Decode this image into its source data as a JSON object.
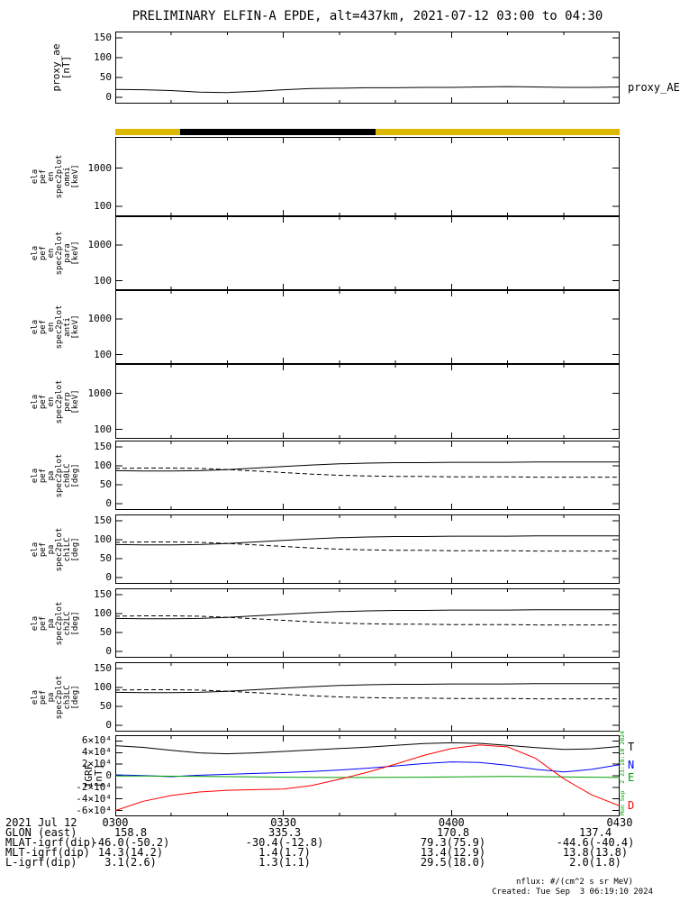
{
  "title": "PRELIMINARY ELFIN-A EPDE, alt=437km, 2021-07-12 03:00 to 04:30",
  "colors": {
    "axis": "#000000",
    "bar_yellow": "#ddb800",
    "bar_black": "#000000",
    "igrf_T": "#000000",
    "igrf_N": "#0000ff",
    "igrf_E": "#00a000",
    "igrf_D": "#ff0000",
    "timestamp_green": "#00a000"
  },
  "time_axis": {
    "date_label": "2021 Jul 12",
    "ticks": [
      "0300",
      "0330",
      "0400",
      "0430"
    ],
    "minutes": [
      0,
      30,
      60,
      90
    ],
    "minor_step_min": 10,
    "start": "2021-07-12 03:00",
    "end": "2021-07-12 04:30"
  },
  "x_minutes": [
    0,
    5,
    10,
    15,
    20,
    25,
    30,
    35,
    40,
    45,
    50,
    55,
    60,
    65,
    70,
    75,
    80,
    85,
    90
  ],
  "status_bar": {
    "segments": [
      {
        "color": "#ddb800",
        "from": 0.0,
        "to": 0.129
      },
      {
        "color": "#000000",
        "from": 0.129,
        "to": 0.516
      },
      {
        "color": "#ddb800",
        "from": 0.516,
        "to": 1.0
      }
    ]
  },
  "chart_data": [
    {
      "id": "proxy_ae",
      "type": "line",
      "ylabel_lines": [
        "proxy_ae",
        "[nT]"
      ],
      "right_label": "proxy_AE",
      "yticks": [
        0,
        50,
        100,
        150
      ],
      "ytick_labels": [
        "0",
        "50",
        "100",
        "150"
      ],
      "ylim": [
        -16,
        166
      ],
      "series": [
        {
          "name": "proxy_AE",
          "color": "#000000",
          "style": "solid",
          "values": [
            20,
            19,
            17,
            13,
            12,
            15,
            19,
            22,
            23,
            24,
            24,
            25,
            25,
            26,
            27,
            26,
            25,
            25,
            26
          ]
        }
      ]
    },
    {
      "id": "en_omni",
      "type": "spectrogram",
      "yscale": "log",
      "ylabel_lines": [
        "ela",
        "pef",
        "en",
        "spec2plot",
        "omni",
        "[keV]"
      ],
      "yticks": [
        100,
        1000
      ],
      "ytick_labels": [
        "100",
        "1000"
      ],
      "ylim": [
        55,
        6500
      ],
      "series": [],
      "note": "blank - no flux data rendered"
    },
    {
      "id": "en_para",
      "type": "spectrogram",
      "yscale": "log",
      "ylabel_lines": [
        "ela",
        "pef",
        "en",
        "spec2plot",
        "para",
        "[keV]"
      ],
      "yticks": [
        100,
        1000
      ],
      "ytick_labels": [
        "100",
        "1000"
      ],
      "ylim": [
        55,
        6500
      ],
      "series": [],
      "note": "blank - no flux data rendered"
    },
    {
      "id": "en_anti",
      "type": "spectrogram",
      "yscale": "log",
      "ylabel_lines": [
        "ela",
        "pef",
        "en",
        "spec2plot",
        "anti",
        "[keV]"
      ],
      "yticks": [
        100,
        1000
      ],
      "ytick_labels": [
        "100",
        "1000"
      ],
      "ylim": [
        55,
        6500
      ],
      "series": [],
      "note": "blank - no flux data rendered"
    },
    {
      "id": "en_perp",
      "type": "spectrogram",
      "yscale": "log",
      "ylabel_lines": [
        "ela",
        "pef",
        "en",
        "spec2plot",
        "perp",
        "[keV]"
      ],
      "yticks": [
        100,
        1000
      ],
      "ytick_labels": [
        "100",
        "1000"
      ],
      "ylim": [
        55,
        6500
      ],
      "series": [],
      "note": "blank - no flux data rendered"
    },
    {
      "id": "pa_ch0",
      "type": "line",
      "ylabel_lines": [
        "ela",
        "pef",
        "pa",
        "spec2plot",
        "ch0LC",
        "[deg]"
      ],
      "yticks": [
        0,
        50,
        100,
        150
      ],
      "ytick_labels": [
        "0",
        "50",
        "100",
        "150"
      ],
      "ylim": [
        -16,
        166
      ],
      "series": [
        {
          "name": "loss cone",
          "color": "#000000",
          "style": "solid",
          "values": [
            87,
            86,
            86,
            87,
            90,
            94,
            98,
            102,
            105,
            107,
            108,
            108,
            109,
            109,
            109,
            110,
            110,
            110,
            110
          ]
        },
        {
          "name": "anti loss cone",
          "color": "#000000",
          "style": "dashed",
          "values": [
            93,
            94,
            94,
            93,
            90,
            86,
            82,
            78,
            75,
            73,
            72,
            72,
            71,
            71,
            71,
            70,
            70,
            70,
            70
          ]
        }
      ]
    },
    {
      "id": "pa_ch1",
      "type": "line",
      "ylabel_lines": [
        "ela",
        "pef",
        "pa",
        "spec2plot",
        "ch1LC",
        "[deg]"
      ],
      "yticks": [
        0,
        50,
        100,
        150
      ],
      "ytick_labels": [
        "0",
        "50",
        "100",
        "150"
      ],
      "ylim": [
        -16,
        166
      ],
      "series": [
        {
          "name": "loss cone",
          "color": "#000000",
          "style": "solid",
          "values": [
            87,
            86,
            86,
            87,
            90,
            94,
            98,
            102,
            105,
            107,
            108,
            108,
            109,
            109,
            109,
            110,
            110,
            110,
            110
          ]
        },
        {
          "name": "anti loss cone",
          "color": "#000000",
          "style": "dashed",
          "values": [
            93,
            94,
            94,
            93,
            90,
            86,
            82,
            78,
            75,
            73,
            72,
            72,
            71,
            71,
            71,
            70,
            70,
            70,
            70
          ]
        }
      ]
    },
    {
      "id": "pa_ch2",
      "type": "line",
      "ylabel_lines": [
        "ela",
        "pef",
        "pa",
        "spec2plot",
        "ch2LC",
        "[deg]"
      ],
      "yticks": [
        0,
        50,
        100,
        150
      ],
      "ytick_labels": [
        "0",
        "50",
        "100",
        "150"
      ],
      "ylim": [
        -16,
        166
      ],
      "series": [
        {
          "name": "loss cone",
          "color": "#000000",
          "style": "solid",
          "values": [
            87,
            86,
            86,
            87,
            90,
            94,
            98,
            102,
            105,
            107,
            108,
            108,
            109,
            109,
            109,
            110,
            110,
            110,
            110
          ]
        },
        {
          "name": "anti loss cone",
          "color": "#000000",
          "style": "dashed",
          "values": [
            93,
            94,
            94,
            93,
            90,
            86,
            82,
            78,
            75,
            73,
            72,
            72,
            71,
            71,
            71,
            70,
            70,
            70,
            70
          ]
        }
      ]
    },
    {
      "id": "pa_ch3",
      "type": "line",
      "ylabel_lines": [
        "ela",
        "pef",
        "pa",
        "spec2plot",
        "ch3LC",
        "[deg]"
      ],
      "yticks": [
        0,
        50,
        100,
        150
      ],
      "ytick_labels": [
        "0",
        "50",
        "100",
        "150"
      ],
      "ylim": [
        -16,
        166
      ],
      "series": [
        {
          "name": "loss cone",
          "color": "#000000",
          "style": "solid",
          "values": [
            87,
            86,
            86,
            87,
            90,
            94,
            98,
            102,
            105,
            107,
            108,
            108,
            109,
            109,
            109,
            110,
            110,
            110,
            110
          ]
        },
        {
          "name": "anti loss cone",
          "color": "#000000",
          "style": "dashed",
          "values": [
            93,
            94,
            94,
            93,
            90,
            86,
            82,
            78,
            75,
            73,
            72,
            72,
            71,
            71,
            71,
            70,
            70,
            70,
            70
          ]
        }
      ]
    },
    {
      "id": "igrf",
      "type": "line",
      "ylabel_lines": [
        "IGRF",
        "[nT]"
      ],
      "yticks": [
        -60000,
        -40000,
        -20000,
        0,
        20000,
        40000,
        60000
      ],
      "ytick_labels": [
        "-6×10⁴",
        "-4×10⁴",
        "-2×10⁴",
        "0",
        "2×10⁴",
        "4×10⁴",
        "6×10⁴"
      ],
      "ylim": [
        -70000,
        70000
      ],
      "series": [
        {
          "name": "T",
          "label": "T",
          "color": "#000000",
          "style": "solid",
          "values": [
            52000,
            49000,
            44000,
            39500,
            38000,
            39500,
            42000,
            44500,
            47000,
            49500,
            52500,
            55500,
            57000,
            56000,
            52500,
            48500,
            45500,
            46500,
            50500
          ]
        },
        {
          "name": "N",
          "label": "N",
          "color": "#0000ff",
          "style": "solid",
          "values": [
            1500,
            500,
            -1500,
            1000,
            2500,
            4000,
            5500,
            7500,
            10000,
            13000,
            17000,
            21000,
            24000,
            23000,
            18000,
            11000,
            6500,
            11000,
            19000
          ]
        },
        {
          "name": "E",
          "label": "E",
          "color": "#00a000",
          "style": "solid",
          "values": [
            -300,
            -500,
            -800,
            -1000,
            -1500,
            -2000,
            -2500,
            -2800,
            -3000,
            -3000,
            -2800,
            -2500,
            -2000,
            -1500,
            -1200,
            -1500,
            -2000,
            -2500,
            -3000
          ]
        },
        {
          "name": "D",
          "label": "D",
          "color": "#ff0000",
          "style": "solid",
          "values": [
            -60000,
            -44000,
            -34000,
            -28000,
            -25000,
            -24000,
            -23000,
            -17000,
            -6000,
            6000,
            20000,
            35000,
            47000,
            53000,
            50000,
            30000,
            -5000,
            -33000,
            -52000
          ]
        }
      ]
    }
  ],
  "footer": {
    "var_labels": [
      {
        "label": "GLON (east)",
        "values": [
          "158.8",
          "335.3",
          "170.8",
          "137.4"
        ]
      },
      {
        "label": "MLAT-igrf(dip)",
        "values": [
          "-46.0(-50.2)",
          "-30.4(-12.8)",
          "79.3(75.9)",
          "-44.6(-40.4)"
        ]
      },
      {
        "label": "MLT-igrf(dip)",
        "values": [
          "14.3(14.2)",
          "1.4(1.7)",
          "13.4(12.9)",
          "13.8(13.8)"
        ]
      },
      {
        "label": "L-igrf(dip)",
        "values": [
          "3.1(2.6)",
          "1.3(1.1)",
          "29.5(18.0)",
          "2.0(1.8)"
        ]
      }
    ],
    "nflux_note": "nflux: #/(cm^2 s sr MeV)",
    "created": "Created: Tue Sep  3 06:19:10 2024",
    "side_timestamp": "Mon Sep  2 23:18:10 2024"
  }
}
